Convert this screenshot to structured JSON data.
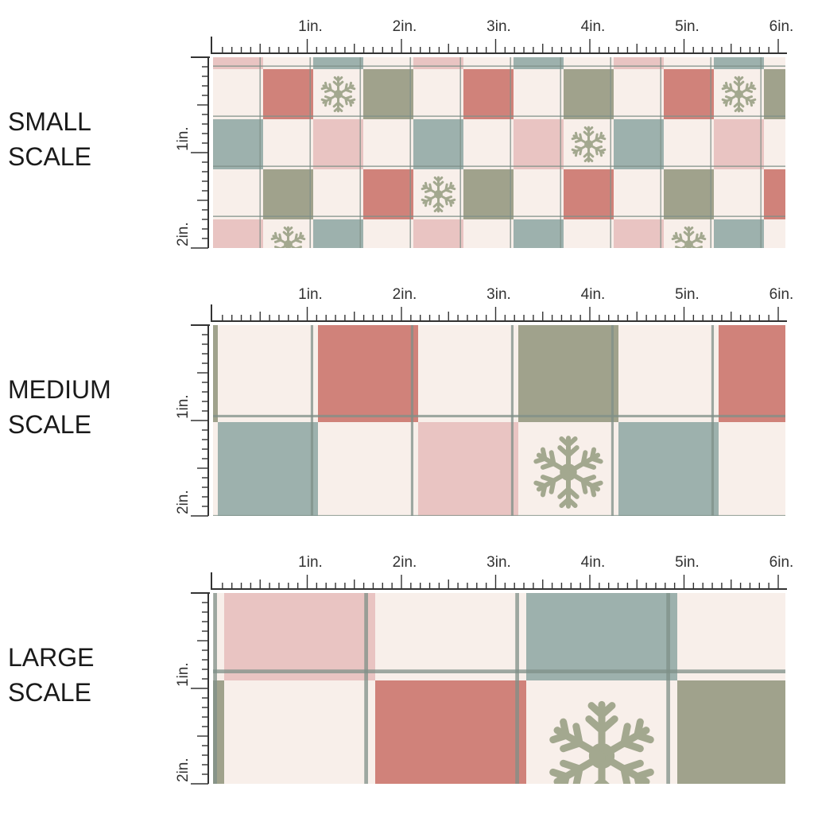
{
  "colors": {
    "cream": "#f8efea",
    "red": "#d0827a",
    "sage": "#a0a28c",
    "blue": "#9db1ad",
    "pink": "#e9c4c2",
    "line": "#7f9088",
    "snowflake": "#a3a88f",
    "ruler": "#333333"
  },
  "panels": [
    {
      "id": "small",
      "label_line1": "SMALL",
      "label_line2": "SCALE"
    },
    {
      "id": "medium",
      "label_line1": "MEDIUM",
      "label_line2": "SCALE"
    },
    {
      "id": "large",
      "label_line1": "LARGE",
      "label_line2": "SCALE"
    }
  ],
  "ruler": {
    "x_labels": [
      "1in.",
      "2in.",
      "3in.",
      "4in.",
      "5in.",
      "6in."
    ],
    "y_labels": [
      "1in.",
      "2in."
    ]
  },
  "icons": {
    "snowflake": "snowflake-icon"
  }
}
